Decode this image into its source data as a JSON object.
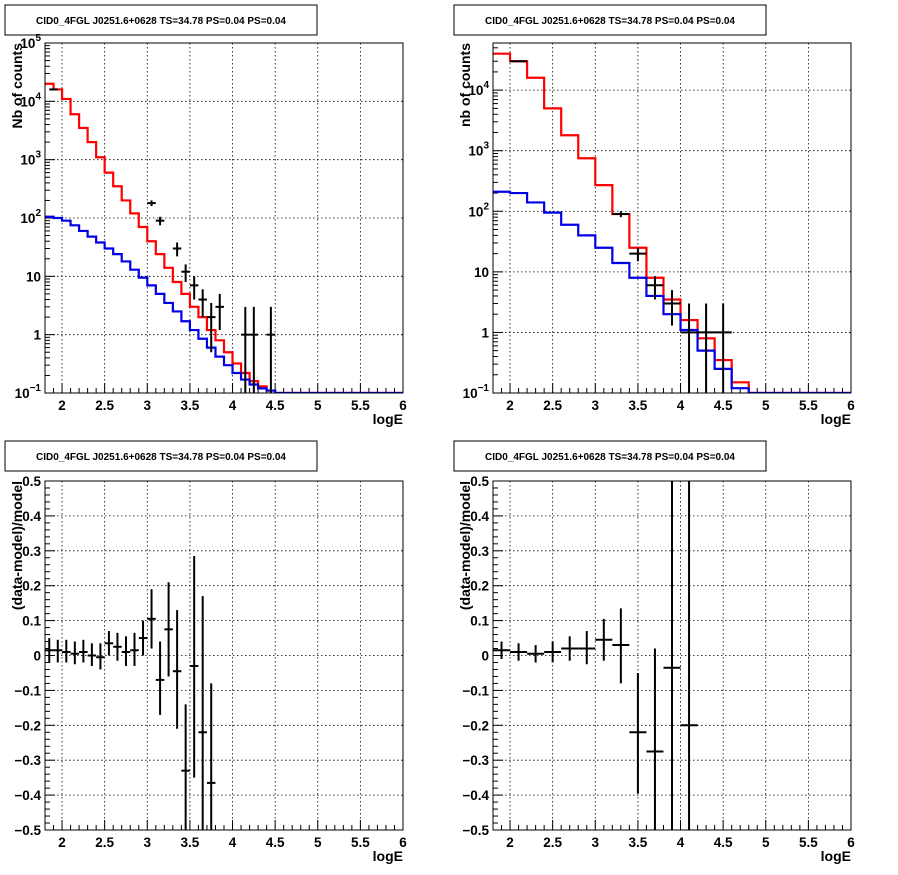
{
  "chart_data": [
    {
      "type": "step",
      "title": "CID0_4FGL J0251.6+0628 TS=34.78 PS=0.04 PS=0.04",
      "xlabel": "logE",
      "ylabel": "Nb of counts",
      "xlim": [
        1.8,
        6.0
      ],
      "ylim": [
        0.1,
        100000
      ],
      "yscale": "log",
      "grid": true,
      "xticks": [
        "2",
        "2.5",
        "3",
        "3.5",
        "4",
        "4.5",
        "5",
        "5.5",
        "6"
      ],
      "yticks": [
        {
          "v": 0.1,
          "label": "10",
          "exp": "−1"
        },
        {
          "v": 1,
          "label": "1",
          "exp": ""
        },
        {
          "v": 10,
          "label": "10",
          "exp": ""
        },
        {
          "v": 100,
          "label": "10",
          "exp": "2"
        },
        {
          "v": 1000,
          "label": "10",
          "exp": "3"
        },
        {
          "v": 10000,
          "label": "10",
          "exp": "4"
        },
        {
          "v": 100000,
          "label": "10",
          "exp": "5"
        }
      ],
      "series": [
        {
          "color": "#ff0000",
          "edges": [
            1.8,
            1.9,
            2.0,
            2.1,
            2.2,
            2.3,
            2.4,
            2.5,
            2.6,
            2.7,
            2.8,
            2.9,
            3.0,
            3.1,
            3.2,
            3.3,
            3.4,
            3.5,
            3.6,
            3.7,
            3.8,
            3.9,
            4.0,
            4.1,
            4.2,
            4.3,
            4.4,
            4.5,
            4.6,
            6.0
          ],
          "values": [
            20000,
            16000,
            11000,
            6000,
            3500,
            2000,
            1100,
            600,
            350,
            200,
            120,
            70,
            40,
            24,
            14,
            8,
            5,
            3,
            2,
            1.2,
            0.8,
            0.5,
            0.32,
            0.22,
            0.16,
            0.13,
            0.11,
            0.1,
            0.1
          ]
        },
        {
          "color": "#0000e6",
          "edges": [
            1.8,
            1.9,
            2.0,
            2.1,
            2.2,
            2.3,
            2.4,
            2.5,
            2.6,
            2.7,
            2.8,
            2.9,
            3.0,
            3.1,
            3.2,
            3.3,
            3.4,
            3.5,
            3.6,
            3.7,
            3.8,
            3.9,
            4.0,
            4.1,
            4.2,
            4.3,
            4.4,
            4.5,
            6.0
          ],
          "values": [
            105,
            100,
            90,
            75,
            60,
            48,
            38,
            30,
            24,
            18,
            13,
            9.5,
            7,
            5,
            3.5,
            2.5,
            1.7,
            1.2,
            0.85,
            0.6,
            0.42,
            0.3,
            0.22,
            0.17,
            0.14,
            0.12,
            0.11,
            0.1
          ]
        }
      ],
      "points": [
        {
          "x": 1.9,
          "y": 16000,
          "xerr": 0.05,
          "ylo": 15800,
          "yhi": 16200
        },
        {
          "x": 3.05,
          "y": 180,
          "xerr": 0.05,
          "ylo": 160,
          "yhi": 200
        },
        {
          "x": 3.15,
          "y": 90,
          "xerr": 0.05,
          "ylo": 75,
          "yhi": 105
        },
        {
          "x": 3.35,
          "y": 30,
          "xerr": 0.05,
          "ylo": 22,
          "yhi": 38
        },
        {
          "x": 3.45,
          "y": 12,
          "xerr": 0.05,
          "ylo": 8,
          "yhi": 16
        },
        {
          "x": 3.55,
          "y": 7,
          "xerr": 0.05,
          "ylo": 4,
          "yhi": 10
        },
        {
          "x": 3.65,
          "y": 4,
          "xerr": 0.05,
          "ylo": 2,
          "yhi": 6
        },
        {
          "x": 3.75,
          "y": 2,
          "xerr": 0.05,
          "ylo": 0.5,
          "yhi": 3.5
        },
        {
          "x": 3.85,
          "y": 3,
          "xerr": 0.05,
          "ylo": 1.2,
          "yhi": 5
        },
        {
          "x": 4.15,
          "y": 1,
          "xerr": 0.05,
          "ylo": 0.1,
          "yhi": 3
        },
        {
          "x": 4.25,
          "y": 1,
          "xerr": 0.05,
          "ylo": 0.1,
          "yhi": 3
        },
        {
          "x": 4.45,
          "y": 1,
          "xerr": 0.05,
          "ylo": 0.1,
          "yhi": 3
        }
      ]
    },
    {
      "type": "step",
      "title": "CID0_4FGL J0251.6+0628 TS=34.78 PS=0.04 PS=0.04",
      "xlabel": "logE",
      "ylabel": "nb of counts",
      "xlim": [
        1.8,
        6.0
      ],
      "ylim": [
        0.1,
        60000
      ],
      "yscale": "log",
      "grid": true,
      "xticks": [
        "2",
        "2.5",
        "3",
        "3.5",
        "4",
        "4.5",
        "5",
        "5.5",
        "6"
      ],
      "yticks": [
        {
          "v": 0.1,
          "label": "10",
          "exp": "−1"
        },
        {
          "v": 1,
          "label": "1",
          "exp": ""
        },
        {
          "v": 10,
          "label": "10",
          "exp": ""
        },
        {
          "v": 100,
          "label": "10",
          "exp": "2"
        },
        {
          "v": 1000,
          "label": "10",
          "exp": "3"
        },
        {
          "v": 10000,
          "label": "10",
          "exp": "4"
        }
      ],
      "series": [
        {
          "color": "#ff0000",
          "edges": [
            1.8,
            2.0,
            2.2,
            2.4,
            2.6,
            2.8,
            3.0,
            3.2,
            3.4,
            3.6,
            3.8,
            4.0,
            4.2,
            4.4,
            4.6,
            4.8,
            6.0
          ],
          "values": [
            40000,
            30000,
            16000,
            5000,
            1800,
            750,
            270,
            90,
            25,
            8,
            3.5,
            1.6,
            0.8,
            0.35,
            0.15,
            0.1
          ]
        },
        {
          "color": "#0000e6",
          "edges": [
            1.8,
            2.0,
            2.2,
            2.4,
            2.6,
            2.8,
            3.0,
            3.2,
            3.4,
            3.6,
            3.8,
            4.0,
            4.2,
            4.4,
            4.6,
            4.8,
            6.0
          ],
          "values": [
            210,
            200,
            140,
            95,
            60,
            40,
            25,
            14,
            8,
            4,
            2,
            1.1,
            0.5,
            0.25,
            0.12,
            0.1
          ]
        }
      ],
      "points": [
        {
          "x": 2.1,
          "y": 30000,
          "xerr": 0.1,
          "ylo": 29700,
          "yhi": 30300
        },
        {
          "x": 3.3,
          "y": 90,
          "xerr": 0.1,
          "ylo": 80,
          "yhi": 100
        },
        {
          "x": 3.5,
          "y": 20,
          "xerr": 0.1,
          "ylo": 15,
          "yhi": 25
        },
        {
          "x": 3.7,
          "y": 6,
          "xerr": 0.1,
          "ylo": 3.5,
          "yhi": 8.5
        },
        {
          "x": 3.9,
          "y": 3,
          "xerr": 0.1,
          "ylo": 1.3,
          "yhi": 5
        },
        {
          "x": 4.1,
          "y": 1,
          "xerr": 0.1,
          "ylo": 0.1,
          "yhi": 3
        },
        {
          "x": 4.3,
          "y": 1,
          "xerr": 0.1,
          "ylo": 0.1,
          "yhi": 3
        },
        {
          "x": 4.5,
          "y": 1,
          "xerr": 0.1,
          "ylo": 0.1,
          "yhi": 3
        }
      ]
    },
    {
      "type": "scatter",
      "title": "CID0_4FGL J0251.6+0628 TS=34.78 PS=0.04 PS=0.04",
      "xlabel": "logE",
      "ylabel": "(data-model)/model",
      "xlim": [
        1.8,
        6.0
      ],
      "ylim": [
        -0.5,
        0.5
      ],
      "yscale": "linear",
      "grid": true,
      "xticks": [
        "2",
        "2.5",
        "3",
        "3.5",
        "4",
        "4.5",
        "5",
        "5.5",
        "6"
      ],
      "yticks": [
        {
          "v": -0.5,
          "label": "−0.5"
        },
        {
          "v": -0.4,
          "label": "−0.4"
        },
        {
          "v": -0.3,
          "label": "−0.3"
        },
        {
          "v": -0.2,
          "label": "−0.2"
        },
        {
          "v": -0.1,
          "label": "−0.1"
        },
        {
          "v": 0,
          "label": "0"
        },
        {
          "v": 0.1,
          "label": "0.1"
        },
        {
          "v": 0.2,
          "label": "0.2"
        },
        {
          "v": 0.3,
          "label": "0.3"
        },
        {
          "v": 0.4,
          "label": "0.4"
        },
        {
          "v": 0.5,
          "label": "0.5"
        }
      ],
      "points": [
        {
          "x": 1.85,
          "y": 0.015,
          "xerr": 0.05,
          "ylo": -0.02,
          "yhi": 0.05
        },
        {
          "x": 1.95,
          "y": 0.015,
          "xerr": 0.05,
          "ylo": -0.02,
          "yhi": 0.045
        },
        {
          "x": 2.05,
          "y": 0.01,
          "xerr": 0.05,
          "ylo": -0.02,
          "yhi": 0.045
        },
        {
          "x": 2.15,
          "y": 0.005,
          "xerr": 0.05,
          "ylo": -0.025,
          "yhi": 0.04
        },
        {
          "x": 2.25,
          "y": 0.01,
          "xerr": 0.05,
          "ylo": -0.02,
          "yhi": 0.045
        },
        {
          "x": 2.35,
          "y": 0.0,
          "xerr": 0.05,
          "ylo": -0.03,
          "yhi": 0.035
        },
        {
          "x": 2.45,
          "y": -0.005,
          "xerr": 0.05,
          "ylo": -0.04,
          "yhi": 0.035
        },
        {
          "x": 2.55,
          "y": 0.035,
          "xerr": 0.05,
          "ylo": 0.0,
          "yhi": 0.07
        },
        {
          "x": 2.65,
          "y": 0.025,
          "xerr": 0.05,
          "ylo": -0.015,
          "yhi": 0.065
        },
        {
          "x": 2.75,
          "y": 0.01,
          "xerr": 0.05,
          "ylo": -0.03,
          "yhi": 0.055
        },
        {
          "x": 2.85,
          "y": 0.015,
          "xerr": 0.05,
          "ylo": -0.03,
          "yhi": 0.065
        },
        {
          "x": 2.95,
          "y": 0.05,
          "xerr": 0.05,
          "ylo": 0.0,
          "yhi": 0.1
        },
        {
          "x": 3.05,
          "y": 0.105,
          "xerr": 0.05,
          "ylo": 0.02,
          "yhi": 0.19
        },
        {
          "x": 3.15,
          "y": -0.07,
          "xerr": 0.05,
          "ylo": -0.17,
          "yhi": 0.04
        },
        {
          "x": 3.25,
          "y": 0.075,
          "xerr": 0.05,
          "ylo": -0.06,
          "yhi": 0.21
        },
        {
          "x": 3.35,
          "y": -0.045,
          "xerr": 0.05,
          "ylo": -0.21,
          "yhi": 0.13
        },
        {
          "x": 3.45,
          "y": -0.33,
          "xerr": 0.05,
          "ylo": -0.5,
          "yhi": -0.14
        },
        {
          "x": 3.55,
          "y": -0.03,
          "xerr": 0.05,
          "ylo": -0.35,
          "yhi": 0.285
        },
        {
          "x": 3.65,
          "y": -0.22,
          "xerr": 0.05,
          "ylo": -0.5,
          "yhi": 0.17
        },
        {
          "x": 3.75,
          "y": -0.365,
          "xerr": 0.05,
          "ylo": -0.5,
          "yhi": -0.08
        }
      ]
    },
    {
      "type": "scatter",
      "title": "CID0_4FGL J0251.6+0628 TS=34.78 PS=0.04 PS=0.04",
      "xlabel": "logE",
      "ylabel": "(data-model)/model",
      "xlim": [
        1.8,
        6.0
      ],
      "ylim": [
        -0.5,
        0.5
      ],
      "yscale": "linear",
      "grid": true,
      "xticks": [
        "2",
        "2.5",
        "3",
        "3.5",
        "4",
        "4.5",
        "5",
        "5.5",
        "6"
      ],
      "yticks": [
        {
          "v": -0.5,
          "label": "−0.5"
        },
        {
          "v": -0.4,
          "label": "−0.4"
        },
        {
          "v": -0.3,
          "label": "−0.3"
        },
        {
          "v": -0.2,
          "label": "−0.2"
        },
        {
          "v": -0.1,
          "label": "−0.1"
        },
        {
          "v": 0,
          "label": "0"
        },
        {
          "v": 0.1,
          "label": "0.1"
        },
        {
          "v": 0.2,
          "label": "0.2"
        },
        {
          "v": 0.3,
          "label": "0.3"
        },
        {
          "v": 0.4,
          "label": "0.4"
        },
        {
          "v": 0.5,
          "label": "0.5"
        }
      ],
      "points": [
        {
          "x": 1.9,
          "y": 0.015,
          "xerr": 0.1,
          "ylo": -0.01,
          "yhi": 0.04
        },
        {
          "x": 2.1,
          "y": 0.01,
          "xerr": 0.1,
          "ylo": -0.015,
          "yhi": 0.035
        },
        {
          "x": 2.3,
          "y": 0.005,
          "xerr": 0.1,
          "ylo": -0.02,
          "yhi": 0.03
        },
        {
          "x": 2.5,
          "y": 0.01,
          "xerr": 0.1,
          "ylo": -0.02,
          "yhi": 0.04
        },
        {
          "x": 2.7,
          "y": 0.02,
          "xerr": 0.1,
          "ylo": -0.015,
          "yhi": 0.055
        },
        {
          "x": 2.9,
          "y": 0.02,
          "xerr": 0.1,
          "ylo": -0.025,
          "yhi": 0.07
        },
        {
          "x": 3.1,
          "y": 0.045,
          "xerr": 0.1,
          "ylo": -0.015,
          "yhi": 0.105
        },
        {
          "x": 3.3,
          "y": 0.03,
          "xerr": 0.1,
          "ylo": -0.08,
          "yhi": 0.135
        },
        {
          "x": 3.5,
          "y": -0.22,
          "xerr": 0.1,
          "ylo": -0.395,
          "yhi": -0.05
        },
        {
          "x": 3.7,
          "y": -0.275,
          "xerr": 0.1,
          "ylo": -0.5,
          "yhi": 0.02
        },
        {
          "x": 3.9,
          "y": -0.035,
          "xerr": 0.1,
          "ylo": -0.5,
          "yhi": 0.5
        },
        {
          "x": 4.1,
          "y": -0.2,
          "xerr": 0.1,
          "ylo": -0.5,
          "yhi": 0.5
        }
      ]
    }
  ]
}
